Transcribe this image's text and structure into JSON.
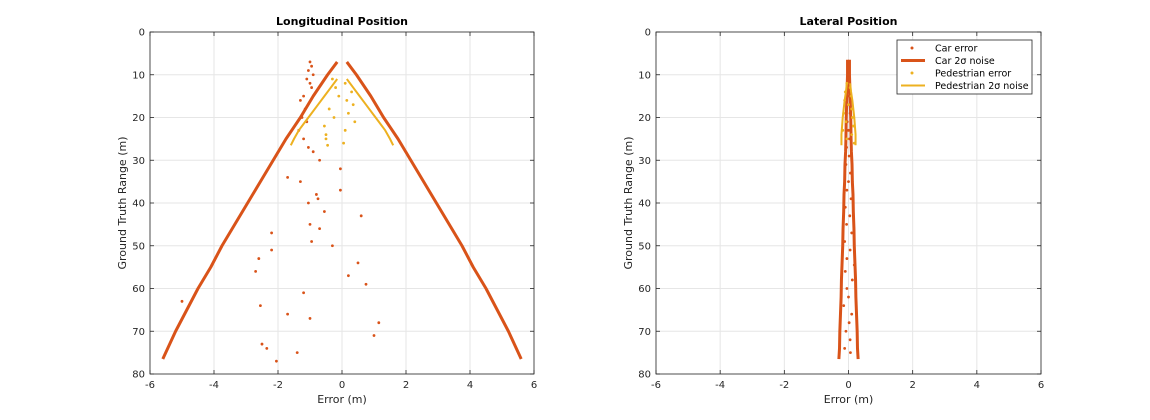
{
  "colors": {
    "car": "#D95319",
    "pedestrian": "#EDB120",
    "grid": "#E6E6E6",
    "axis": "#262626"
  },
  "chart_data": [
    {
      "type": "scatter",
      "title": "Longitudinal Position",
      "xlabel": "Error (m)",
      "ylabel": "Ground Truth Range (m)",
      "xlim": [
        -6,
        6
      ],
      "ylim": [
        0,
        80
      ],
      "y_reversed": true,
      "grid": true,
      "xticks": [
        -6,
        -4,
        -2,
        0,
        2,
        4,
        6
      ],
      "yticks": [
        0,
        10,
        20,
        30,
        40,
        50,
        60,
        70,
        80
      ],
      "series": [
        {
          "name": "Car error",
          "kind": "points",
          "color": "#D95319",
          "points": [
            [
              -1.0,
              7
            ],
            [
              -0.95,
              8
            ],
            [
              -1.05,
              9
            ],
            [
              -0.9,
              10
            ],
            [
              -1.1,
              11
            ],
            [
              -1.0,
              12
            ],
            [
              -0.95,
              13
            ],
            [
              -1.2,
              15
            ],
            [
              -1.3,
              16
            ],
            [
              -1.15,
              18
            ],
            [
              -1.25,
              20
            ],
            [
              -1.1,
              21
            ],
            [
              -1.35,
              23
            ],
            [
              -1.2,
              25
            ],
            [
              -1.05,
              27
            ],
            [
              -0.9,
              28
            ],
            [
              -0.7,
              30
            ],
            [
              -1.7,
              34
            ],
            [
              -1.3,
              35
            ],
            [
              -0.8,
              38
            ],
            [
              -0.75,
              39
            ],
            [
              -1.05,
              40
            ],
            [
              -0.55,
              42
            ],
            [
              -1.0,
              45
            ],
            [
              -0.7,
              46
            ],
            [
              -0.95,
              49
            ],
            [
              -0.3,
              50
            ],
            [
              -2.2,
              47
            ],
            [
              -2.2,
              51
            ],
            [
              -2.6,
              53
            ],
            [
              -2.7,
              56
            ],
            [
              0.5,
              54
            ],
            [
              0.2,
              57
            ],
            [
              0.75,
              59
            ],
            [
              -5.0,
              63
            ],
            [
              -2.55,
              64
            ],
            [
              -1.2,
              61
            ],
            [
              -1.7,
              66
            ],
            [
              -1.0,
              67
            ],
            [
              1.15,
              68
            ],
            [
              1.0,
              71
            ],
            [
              -2.5,
              73
            ],
            [
              -2.35,
              74
            ],
            [
              -2.05,
              77
            ],
            [
              -1.4,
              75
            ],
            [
              -0.05,
              32
            ],
            [
              -0.05,
              37
            ],
            [
              0.6,
              43
            ]
          ]
        },
        {
          "name": "Car 2σ noise",
          "kind": "boundary",
          "color": "#D95319",
          "points": [
            [
              -0.15,
              7
            ],
            [
              -0.45,
              10
            ],
            [
              -0.9,
              15
            ],
            [
              -1.3,
              20
            ],
            [
              -1.75,
              25
            ],
            [
              -2.15,
              30
            ],
            [
              -2.55,
              35
            ],
            [
              -2.95,
              40
            ],
            [
              -3.35,
              45
            ],
            [
              -3.75,
              50
            ],
            [
              -4.1,
              55
            ],
            [
              -4.5,
              60
            ],
            [
              -4.85,
              65
            ],
            [
              -5.2,
              70
            ],
            [
              -5.6,
              76.5
            ]
          ]
        },
        {
          "name": "Pedestrian error",
          "kind": "points",
          "color": "#EDB120",
          "points": [
            [
              -0.3,
              11
            ],
            [
              0.1,
              12
            ],
            [
              -0.2,
              13
            ],
            [
              0.3,
              14
            ],
            [
              -0.1,
              15
            ],
            [
              0.15,
              16
            ],
            [
              0.35,
              17
            ],
            [
              -0.4,
              18
            ],
            [
              0.2,
              19
            ],
            [
              -0.25,
              20
            ],
            [
              0.4,
              21
            ],
            [
              -0.55,
              22
            ],
            [
              0.1,
              23
            ],
            [
              -0.5,
              24
            ],
            [
              -0.5,
              25
            ],
            [
              0.05,
              26
            ],
            [
              -0.45,
              26.5
            ]
          ]
        },
        {
          "name": "Pedestrian 2σ noise",
          "kind": "boundary",
          "color": "#EDB120",
          "points": [
            [
              -0.15,
              11
            ],
            [
              -0.35,
              13
            ],
            [
              -0.55,
              15
            ],
            [
              -0.75,
              17
            ],
            [
              -0.95,
              19
            ],
            [
              -1.15,
              21
            ],
            [
              -1.35,
              23
            ],
            [
              -1.5,
              25
            ],
            [
              -1.6,
              26.5
            ]
          ]
        }
      ]
    },
    {
      "type": "scatter",
      "title": "Lateral Position",
      "xlabel": "Error (m)",
      "ylabel": "Ground Truth Range (m)",
      "xlim": [
        -6,
        6
      ],
      "ylim": [
        0,
        80
      ],
      "y_reversed": true,
      "grid": true,
      "legend_placement": "top-right",
      "xticks": [
        -6,
        -4,
        -2,
        0,
        2,
        4,
        6
      ],
      "yticks": [
        0,
        10,
        20,
        30,
        40,
        50,
        60,
        70,
        80
      ],
      "series": [
        {
          "name": "Car error",
          "kind": "points",
          "color": "#D95319",
          "points": [
            [
              0.0,
              7
            ],
            [
              -0.02,
              9
            ],
            [
              0.03,
              11
            ],
            [
              -0.05,
              13
            ],
            [
              0.02,
              15
            ],
            [
              -0.03,
              17
            ],
            [
              0.05,
              19
            ],
            [
              -0.04,
              21
            ],
            [
              0.0,
              23
            ],
            [
              0.03,
              25
            ],
            [
              -0.06,
              27
            ],
            [
              0.02,
              29
            ],
            [
              -0.08,
              31
            ],
            [
              0.06,
              33
            ],
            [
              0.0,
              35
            ],
            [
              -0.05,
              37
            ],
            [
              0.08,
              39
            ],
            [
              -0.1,
              41
            ],
            [
              0.04,
              43
            ],
            [
              -0.06,
              45
            ],
            [
              0.1,
              47
            ],
            [
              -0.12,
              49
            ],
            [
              0.05,
              51
            ],
            [
              -0.05,
              53
            ],
            [
              0.18,
              54.5
            ],
            [
              -0.1,
              56
            ],
            [
              0.12,
              58
            ],
            [
              -0.05,
              60
            ],
            [
              0.0,
              62
            ],
            [
              -0.15,
              64
            ],
            [
              0.1,
              66
            ],
            [
              0.02,
              68
            ],
            [
              -0.08,
              70
            ],
            [
              0.05,
              72
            ],
            [
              -0.12,
              74
            ],
            [
              0.06,
              75
            ]
          ]
        },
        {
          "name": "Car 2σ noise",
          "kind": "boundary",
          "color": "#D95319",
          "points": [
            [
              -0.03,
              6.5
            ],
            [
              -0.03,
              10
            ],
            [
              -0.05,
              15
            ],
            [
              -0.07,
              20
            ],
            [
              -0.08,
              25
            ],
            [
              -0.09,
              28
            ],
            [
              -0.11,
              31
            ],
            [
              -0.12,
              35
            ],
            [
              -0.14,
              38
            ],
            [
              -0.15,
              42
            ],
            [
              -0.17,
              46
            ],
            [
              -0.18,
              50
            ],
            [
              -0.2,
              54
            ],
            [
              -0.22,
              58
            ],
            [
              -0.23,
              62
            ],
            [
              -0.25,
              66
            ],
            [
              -0.27,
              70
            ],
            [
              -0.28,
              74
            ],
            [
              -0.3,
              76.5
            ]
          ]
        },
        {
          "name": "Pedestrian error",
          "kind": "points",
          "color": "#EDB120",
          "points": [
            [
              -0.05,
              12
            ],
            [
              0.05,
              13
            ],
            [
              -0.1,
              14
            ],
            [
              0.08,
              15
            ],
            [
              -0.12,
              16
            ],
            [
              0.0,
              17
            ],
            [
              0.1,
              18
            ],
            [
              -0.15,
              19
            ],
            [
              0.12,
              20
            ],
            [
              -0.08,
              21
            ],
            [
              0.15,
              22
            ],
            [
              -0.18,
              23
            ],
            [
              0.1,
              24
            ],
            [
              -0.05,
              25
            ],
            [
              0.18,
              26
            ]
          ]
        },
        {
          "name": "Pedestrian 2σ noise",
          "kind": "boundary",
          "color": "#EDB120",
          "points": [
            [
              -0.05,
              12
            ],
            [
              -0.08,
              14
            ],
            [
              -0.12,
              16
            ],
            [
              -0.15,
              18
            ],
            [
              -0.18,
              20
            ],
            [
              -0.2,
              22
            ],
            [
              -0.22,
              24
            ],
            [
              -0.22,
              26.5
            ]
          ]
        }
      ],
      "legend": [
        {
          "label_prefix": "Car ",
          "label_symbol": "error",
          "marker": "dot",
          "color": "#D95319"
        },
        {
          "label_prefix": "Car 2",
          "label_symbol": "σ noise",
          "marker": "thick-line",
          "color": "#D95319"
        },
        {
          "label_prefix": "Pedestrian ",
          "label_symbol": "error",
          "marker": "dot",
          "color": "#EDB120"
        },
        {
          "label_prefix": "Pedestrian 2",
          "label_symbol": "σ noise",
          "marker": "line",
          "color": "#EDB120"
        }
      ]
    }
  ]
}
